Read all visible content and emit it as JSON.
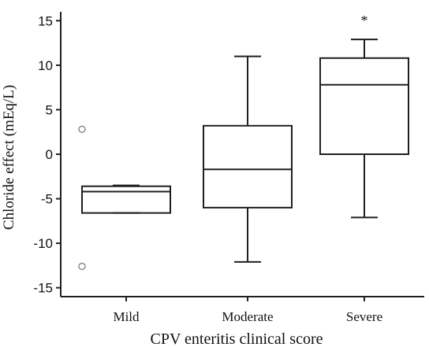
{
  "chart_data": {
    "type": "box",
    "title": "",
    "xlabel": "CPV enteritis clinical score",
    "ylabel": "Chloride effect (mEq/L)",
    "ylim": [
      -16,
      16
    ],
    "yticks": [
      15,
      10,
      5,
      0,
      -5,
      -10,
      -15
    ],
    "ytick_labels": [
      "15",
      "10",
      "5",
      "0",
      "-5",
      "-10",
      "-15"
    ],
    "grid": false,
    "categories": [
      "Mild",
      "Moderate",
      "Severe"
    ],
    "boxes": [
      {
        "category": "Mild",
        "whisker_low": -6.6,
        "q1": -6.6,
        "median": -4.2,
        "q3": -3.6,
        "whisker_high": -3.5,
        "outliers": [
          2.8,
          -12.6
        ],
        "annotation": ""
      },
      {
        "category": "Moderate",
        "whisker_low": -12.1,
        "q1": -6.0,
        "median": -1.7,
        "q3": 3.2,
        "whisker_high": 11.0,
        "outliers": [],
        "annotation": ""
      },
      {
        "category": "Severe",
        "whisker_low": -7.1,
        "q1": 0.0,
        "median": 7.8,
        "q3": 10.8,
        "whisker_high": 12.9,
        "outliers": [],
        "annotation": "*"
      }
    ],
    "colors": {
      "box_fill": "#ffffff",
      "stroke": "#1f1f1f",
      "outlier_stroke": "#8a8a8a",
      "axis": "#1f1f1f",
      "text": "#111111"
    }
  }
}
